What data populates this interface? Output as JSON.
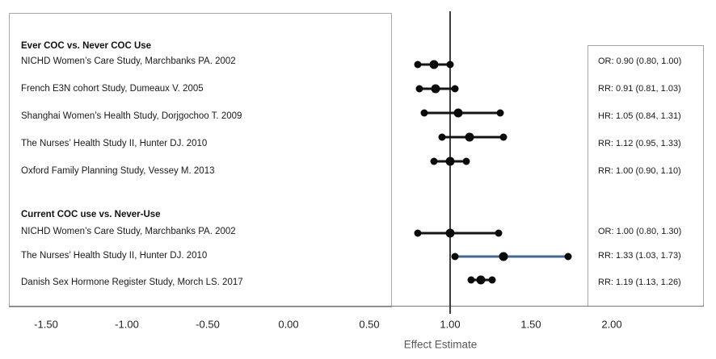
{
  "chart_data": {
    "type": "forest",
    "xlabel": "Effect Estimate",
    "x_ticks": [
      {
        "value": -1.5,
        "label": "-1.50"
      },
      {
        "value": -1.0,
        "label": "-1.00"
      },
      {
        "value": -0.5,
        "label": "-0.50"
      },
      {
        "value": 0.0,
        "label": "0.00"
      },
      {
        "value": 0.5,
        "label": "0.50"
      },
      {
        "value": 1.0,
        "label": "1.00"
      },
      {
        "value": 1.5,
        "label": "1.50"
      },
      {
        "value": 2.0,
        "label": "2.00"
      }
    ],
    "xlim": [
      -1.75,
      2.55
    ],
    "reference_line_value": 1.0,
    "grid": false,
    "groups": [
      {
        "header": "Ever COC vs. Never COC Use",
        "studies": [
          {
            "label": "NICHD Women’s Care Study, Marchbanks PA. 2002",
            "measure": "OR",
            "estimate": 0.9,
            "ci_lower": 0.8,
            "ci_upper": 1.0,
            "estimate_text": "OR: 0.90 (0.80, 1.00)",
            "highlight": false
          },
          {
            "label": "French E3N cohort Study, Dumeaux V. 2005",
            "measure": "RR",
            "estimate": 0.91,
            "ci_lower": 0.81,
            "ci_upper": 1.03,
            "estimate_text": "RR: 0.91 (0.81, 1.03)",
            "highlight": false
          },
          {
            "label": "Shanghai Women’s Health Study, Dorjgochoo T. 2009",
            "measure": "HR",
            "estimate": 1.05,
            "ci_lower": 0.84,
            "ci_upper": 1.31,
            "estimate_text": "HR: 1.05 (0.84, 1.31)",
            "highlight": false
          },
          {
            "label": "The Nurses’ Health Study II, Hunter DJ. 2010",
            "measure": "RR",
            "estimate": 1.12,
            "ci_lower": 0.95,
            "ci_upper": 1.33,
            "estimate_text": "RR: 1.12 (0.95, 1.33)",
            "highlight": false
          },
          {
            "label": "Oxford Family Planning Study, Vessey M. 2013",
            "measure": "RR",
            "estimate": 1.0,
            "ci_lower": 0.9,
            "ci_upper": 1.1,
            "estimate_text": "RR: 1.00 (0.90, 1.10)",
            "highlight": false
          }
        ]
      },
      {
        "header": "Current COC use vs. Never-Use",
        "studies": [
          {
            "label": "NICHD Women’s Care Study, Marchbanks PA. 2002",
            "measure": "OR",
            "estimate": 1.0,
            "ci_lower": 0.8,
            "ci_upper": 1.3,
            "estimate_text": "OR: 1.00 (0.80, 1.30)",
            "highlight": false
          },
          {
            "label": "The Nurses’ Health Study II, Hunter DJ. 2010",
            "measure": "RR",
            "estimate": 1.33,
            "ci_lower": 1.03,
            "ci_upper": 1.73,
            "estimate_text": "RR: 1.33 (1.03, 1.73)",
            "highlight": true
          },
          {
            "label": "Danish Sex Hormone Register Study, Morch LS. 2017",
            "measure": "RR",
            "estimate": 1.19,
            "ci_lower": 1.13,
            "ci_upper": 1.26,
            "estimate_text": "RR: 1.19 (1.13, 1.26)",
            "highlight": false
          }
        ]
      }
    ],
    "colors": {
      "marker": "#0a0a0a",
      "ci_line": "#141414",
      "ci_line_highlight": "#45688e",
      "box_border": "#a6a6a6",
      "axis_line": "#7a7a7a",
      "reference_line": "#3f3f3f"
    }
  }
}
